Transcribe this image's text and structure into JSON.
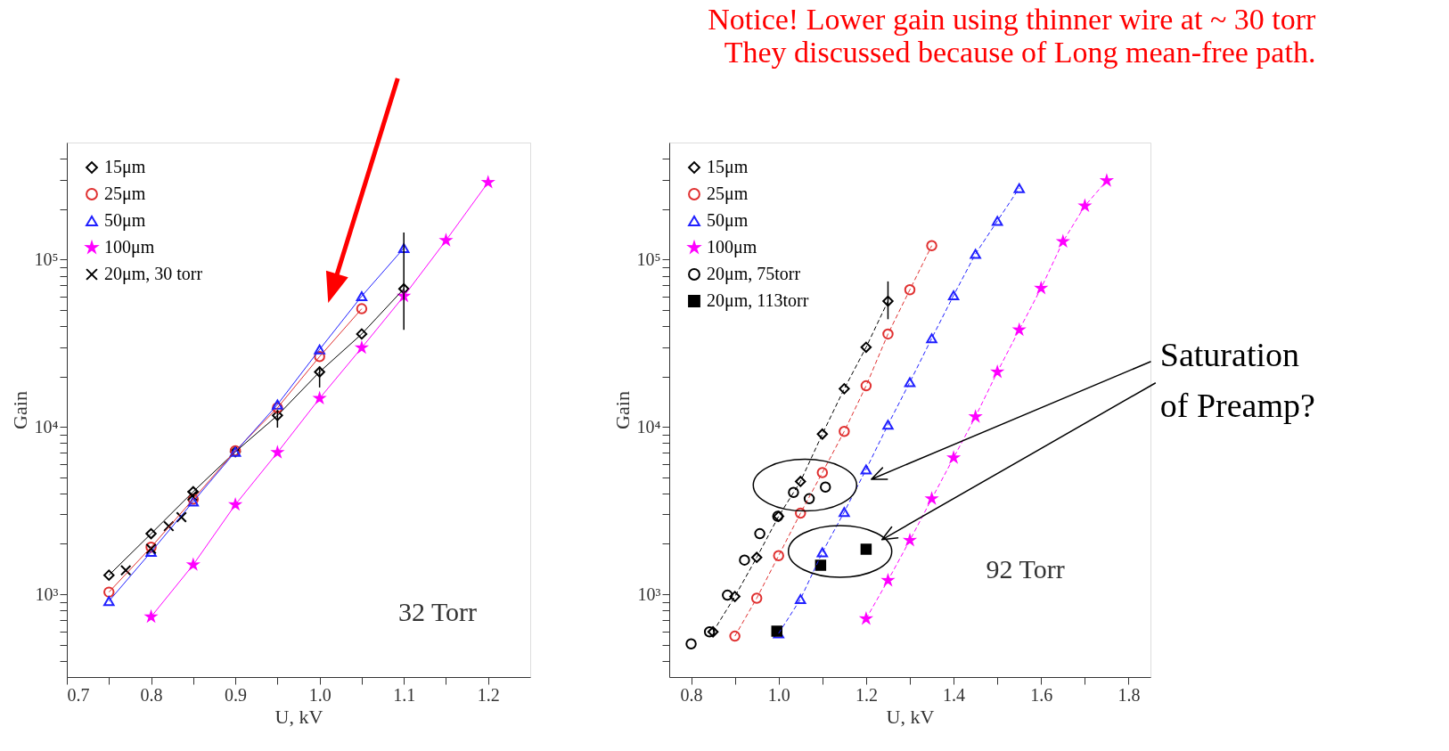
{
  "chart_data": [
    {
      "type": "line",
      "xlabel": "U, kV",
      "ylabel": "Gain",
      "log": "y",
      "xlim": [
        0.7,
        1.25
      ],
      "ylim": [
        320,
        500000
      ],
      "legend": "top left",
      "grid": false,
      "xticks": [
        0.7,
        {
          "value": 0.75,
          "label": null
        },
        0.8,
        {
          "value": 0.85,
          "label": null
        },
        0.9,
        {
          "value": 0.95,
          "label": null
        },
        {
          "value": 1,
          "label": "1.0"
        },
        {
          "value": 1.05,
          "label": null
        },
        1.1,
        {
          "value": 1.15,
          "label": null
        },
        1.2
      ],
      "yticks": [
        {
          "value": 400,
          "label": null
        },
        {
          "value": 500,
          "label": null
        },
        {
          "value": 600,
          "label": null
        },
        {
          "value": 700,
          "label": null
        },
        {
          "value": 800,
          "label": null
        },
        {
          "value": 900,
          "label": null
        },
        {
          "value": 1000,
          "label": "10³"
        },
        {
          "value": 2000,
          "label": null
        },
        {
          "value": 3000,
          "label": null
        },
        {
          "value": 4000,
          "label": null
        },
        {
          "value": 5000,
          "label": null
        },
        {
          "value": 6000,
          "label": null
        },
        {
          "value": 7000,
          "label": null
        },
        {
          "value": 8000,
          "label": null
        },
        {
          "value": 9000,
          "label": null
        },
        {
          "value": 10000,
          "label": "10⁴"
        },
        {
          "value": 20000,
          "label": null
        },
        {
          "value": 30000,
          "label": null
        },
        {
          "value": 40000,
          "label": null
        },
        {
          "value": 50000,
          "label": null
        },
        {
          "value": 60000,
          "label": null
        },
        {
          "value": 70000,
          "label": null
        },
        {
          "value": 80000,
          "label": null
        },
        {
          "value": 90000,
          "label": null
        },
        {
          "value": 100000,
          "label": "10⁵"
        },
        {
          "value": 200000,
          "label": null
        },
        {
          "value": 300000,
          "label": null
        },
        {
          "value": 400000,
          "label": null
        }
      ],
      "annotations": [
        "32 Torr"
      ],
      "series": [
        {
          "name": "15μm",
          "color": "#000000",
          "marker": "diamond",
          "line_style": "solid",
          "x": [
            0.75,
            0.8,
            0.85,
            0.9,
            0.95,
            1.0,
            1.05,
            1.1
          ],
          "values": [
            1300,
            2300,
            4100,
            7100,
            11700,
            21300,
            35900,
            66800
          ],
          "errors": [
            null,
            null,
            null,
            null,
            [
              9900,
              12500
            ],
            [
              17200,
              23000
            ],
            null,
            [
              38000,
              145000
            ]
          ]
        },
        {
          "name": "25μm",
          "color": "#e03030",
          "marker": "circle",
          "line_style": "solid",
          "x": [
            0.75,
            0.8,
            0.85,
            0.9,
            0.95,
            1.0,
            1.05
          ],
          "values": [
            1030,
            1910,
            3700,
            7200,
            13000,
            26300,
            50800
          ]
        },
        {
          "name": "50μm",
          "color": "#2020ff",
          "marker": "triangle",
          "line_style": "solid",
          "x": [
            0.75,
            0.8,
            0.85,
            0.9,
            0.95,
            1.0,
            1.05,
            1.1
          ],
          "values": [
            910,
            1790,
            3580,
            7100,
            13600,
            29000,
            60400,
            117000
          ]
        },
        {
          "name": "100μm",
          "color": "#ff00ff",
          "marker": "star",
          "line_style": "solid",
          "x": [
            0.8,
            0.85,
            0.9,
            0.95,
            1.0,
            1.05,
            1.1,
            1.15,
            1.2
          ],
          "values": [
            733,
            1500,
            3430,
            7030,
            14800,
            29700,
            60400,
            130000,
            289000
          ]
        },
        {
          "name": "20μm, 30 torr",
          "color": "#000000",
          "type": "scatter",
          "marker": "cross",
          "x": [
            0.77,
            0.8,
            0.821,
            0.836,
            0.849
          ],
          "values": [
            1390,
            1870,
            2550,
            2890,
            3880
          ]
        }
      ]
    },
    {
      "type": "line",
      "title": "Notice!  Lower gain using thinner wire at ~ 30 torr",
      "subtitle": "They discussed because of Long mean-free path.",
      "xlabel": "U, kV",
      "ylabel": "Gain",
      "log": "y",
      "xlim": [
        0.75,
        1.85
      ],
      "ylim": [
        320,
        500000
      ],
      "legend": "top left",
      "grid": false,
      "xticks": [
        0.8,
        {
          "value": 0.9,
          "label": null
        },
        {
          "value": 1,
          "label": "1.0"
        },
        {
          "value": 1.1,
          "label": null
        },
        1.2,
        {
          "value": 1.3,
          "label": null
        },
        1.4,
        {
          "value": 1.5,
          "label": null
        },
        1.6,
        {
          "value": 1.7,
          "label": null
        },
        1.8
      ],
      "yticks": [
        {
          "value": 400,
          "label": null
        },
        {
          "value": 500,
          "label": null
        },
        {
          "value": 600,
          "label": null
        },
        {
          "value": 700,
          "label": null
        },
        {
          "value": 800,
          "label": null
        },
        {
          "value": 900,
          "label": null
        },
        {
          "value": 1000,
          "label": "10³"
        },
        {
          "value": 2000,
          "label": null
        },
        {
          "value": 3000,
          "label": null
        },
        {
          "value": 4000,
          "label": null
        },
        {
          "value": 5000,
          "label": null
        },
        {
          "value": 6000,
          "label": null
        },
        {
          "value": 7000,
          "label": null
        },
        {
          "value": 8000,
          "label": null
        },
        {
          "value": 9000,
          "label": null
        },
        {
          "value": 10000,
          "label": "10⁴"
        },
        {
          "value": 20000,
          "label": null
        },
        {
          "value": 30000,
          "label": null
        },
        {
          "value": 40000,
          "label": null
        },
        {
          "value": 50000,
          "label": null
        },
        {
          "value": 60000,
          "label": null
        },
        {
          "value": 70000,
          "label": null
        },
        {
          "value": 80000,
          "label": null
        },
        {
          "value": 90000,
          "label": null
        },
        {
          "value": 100000,
          "label": "10⁵"
        },
        {
          "value": 200000,
          "label": null
        },
        {
          "value": 300000,
          "label": null
        },
        {
          "value": 400000,
          "label": null
        }
      ],
      "annotations": [
        "92 Torr",
        "Saturation\nof Preamp?"
      ],
      "series": [
        {
          "name": "15μm",
          "color": "#000000",
          "marker": "diamond",
          "line_style": "dashed",
          "x": [
            0.85,
            0.9,
            0.95,
            1.0,
            1.05,
            1.1,
            1.15,
            1.2,
            1.25
          ],
          "values": [
            596,
            969,
            1660,
            2920,
            4720,
            9060,
            16900,
            29900,
            56400
          ],
          "errors": [
            null,
            null,
            null,
            null,
            null,
            null,
            null,
            null,
            [
              44000,
              74000
            ]
          ]
        },
        {
          "name": "25μm",
          "color": "#e03030",
          "marker": "circle",
          "line_style": "dashed",
          "x": [
            0.9,
            0.95,
            1.0,
            1.05,
            1.1,
            1.15,
            1.2,
            1.25,
            1.3,
            1.35
          ],
          "values": [
            562,
            947,
            1700,
            3050,
            5330,
            9400,
            17600,
            35900,
            66000,
            121000
          ]
        },
        {
          "name": "50μm",
          "color": "#2020ff",
          "marker": "triangle",
          "line_style": "dashed",
          "x": [
            1.0,
            1.05,
            1.1,
            1.15,
            1.2,
            1.25,
            1.3,
            1.35,
            1.4,
            1.45,
            1.5,
            1.55
          ],
          "values": [
            583,
            935,
            1780,
            3100,
            5570,
            10300,
            18500,
            33800,
            61100,
            108000,
            170000,
            267000
          ]
        },
        {
          "name": "100μm",
          "color": "#ff00ff",
          "marker": "star",
          "line_style": "dashed",
          "x": [
            1.2,
            1.25,
            1.3,
            1.35,
            1.4,
            1.45,
            1.5,
            1.55,
            1.6,
            1.65,
            1.7,
            1.75
          ],
          "values": [
            714,
            1210,
            2100,
            3720,
            6540,
            11500,
            21300,
            38000,
            67400,
            128000,
            209000,
            296000
          ]
        },
        {
          "name": "20μm, 75torr",
          "color": "#000000",
          "type": "scatter",
          "marker": "circle",
          "x": [
            0.8,
            0.842,
            0.883,
            0.922,
            0.957,
            0.998,
            1.034,
            1.07,
            1.107
          ],
          "values": [
            505,
            596,
            987,
            1600,
            2300,
            2920,
            4060,
            3720,
            4370
          ]
        },
        {
          "name": "20μm, 113torr",
          "color": "#000000",
          "type": "scatter",
          "marker": "square",
          "x": [
            0.996,
            1.096,
            1.2
          ],
          "values": [
            601,
            1490,
            1860
          ]
        }
      ]
    }
  ]
}
